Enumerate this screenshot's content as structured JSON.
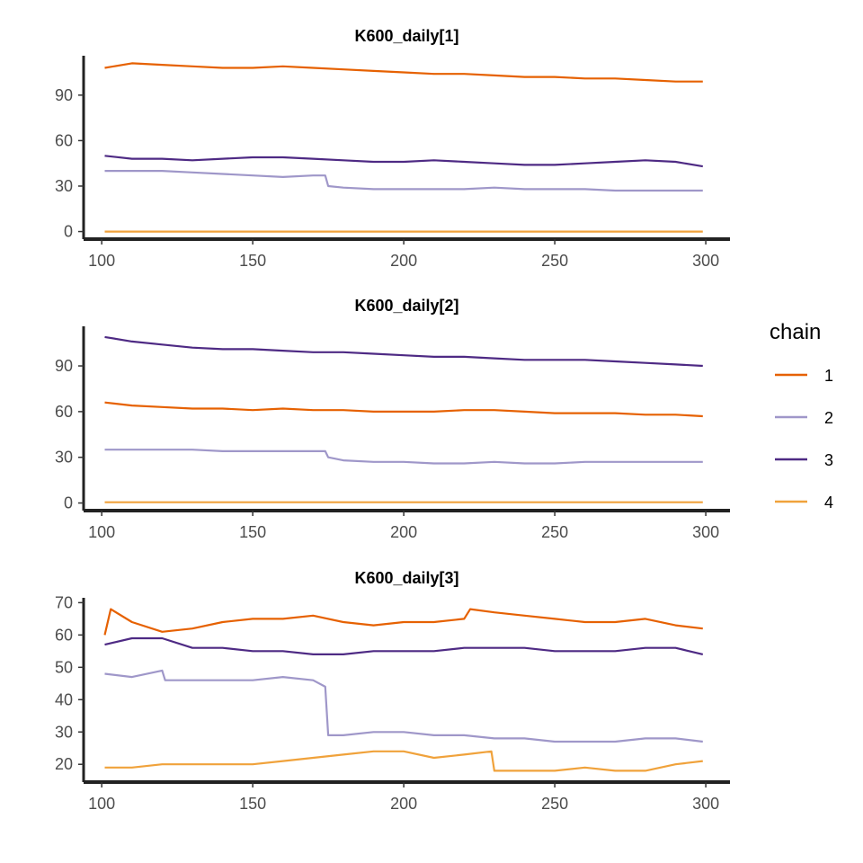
{
  "chart_data": [
    {
      "type": "line",
      "title": "K600_daily[1]",
      "xlabel": "",
      "ylabel": "",
      "xlim": [
        94,
        308
      ],
      "ylim": [
        -5,
        116
      ],
      "xticks": [
        100,
        150,
        200,
        250,
        300
      ],
      "yticks": [
        0,
        30,
        60,
        90
      ],
      "series": [
        {
          "name": "1",
          "x": [
            101,
            110,
            120,
            130,
            140,
            150,
            160,
            170,
            180,
            190,
            200,
            210,
            220,
            230,
            240,
            250,
            260,
            270,
            280,
            290,
            299
          ],
          "values": [
            108,
            111,
            110,
            109,
            108,
            108,
            109,
            108,
            107,
            106,
            105,
            104,
            104,
            103,
            102,
            102,
            101,
            101,
            100,
            99,
            99
          ]
        },
        {
          "name": "2",
          "x": [
            101,
            110,
            120,
            130,
            140,
            150,
            160,
            170,
            174,
            175,
            180,
            190,
            200,
            210,
            220,
            230,
            240,
            250,
            260,
            270,
            280,
            290,
            299
          ],
          "values": [
            40,
            40,
            40,
            39,
            38,
            37,
            36,
            37,
            37,
            30,
            29,
            28,
            28,
            28,
            28,
            29,
            28,
            28,
            28,
            27,
            27,
            27,
            27
          ]
        },
        {
          "name": "3",
          "x": [
            101,
            110,
            120,
            130,
            140,
            150,
            160,
            170,
            180,
            190,
            200,
            210,
            220,
            230,
            240,
            250,
            260,
            270,
            280,
            290,
            299
          ],
          "values": [
            50,
            48,
            48,
            47,
            48,
            49,
            49,
            48,
            47,
            46,
            46,
            47,
            46,
            45,
            44,
            44,
            45,
            46,
            47,
            46,
            43
          ]
        },
        {
          "name": "4",
          "x": [
            101,
            299
          ],
          "values": [
            0,
            0
          ]
        }
      ]
    },
    {
      "type": "line",
      "title": "K600_daily[2]",
      "xlabel": "",
      "ylabel": "",
      "xlim": [
        94,
        308
      ],
      "ylim": [
        -5,
        116
      ],
      "xticks": [
        100,
        150,
        200,
        250,
        300
      ],
      "yticks": [
        0,
        30,
        60,
        90
      ],
      "series": [
        {
          "name": "1",
          "x": [
            101,
            110,
            120,
            130,
            140,
            150,
            160,
            170,
            180,
            190,
            200,
            210,
            220,
            230,
            240,
            250,
            260,
            270,
            280,
            290,
            299
          ],
          "values": [
            66,
            64,
            63,
            62,
            62,
            61,
            62,
            61,
            61,
            60,
            60,
            60,
            61,
            61,
            60,
            59,
            59,
            59,
            58,
            58,
            57
          ]
        },
        {
          "name": "2",
          "x": [
            101,
            110,
            120,
            130,
            140,
            150,
            160,
            170,
            174,
            175,
            180,
            190,
            200,
            210,
            220,
            230,
            240,
            250,
            260,
            270,
            280,
            290,
            299
          ],
          "values": [
            35,
            35,
            35,
            35,
            34,
            34,
            34,
            34,
            34,
            30,
            28,
            27,
            27,
            26,
            26,
            27,
            26,
            26,
            27,
            27,
            27,
            27,
            27
          ]
        },
        {
          "name": "3",
          "x": [
            101,
            110,
            120,
            130,
            140,
            150,
            160,
            170,
            180,
            190,
            200,
            210,
            220,
            230,
            240,
            250,
            260,
            270,
            280,
            290,
            299
          ],
          "values": [
            109,
            106,
            104,
            102,
            101,
            101,
            100,
            99,
            99,
            98,
            97,
            96,
            96,
            95,
            94,
            94,
            94,
            93,
            92,
            91,
            90
          ]
        },
        {
          "name": "4",
          "x": [
            101,
            299
          ],
          "values": [
            0.5,
            0.5
          ]
        }
      ]
    },
    {
      "type": "line",
      "title": "K600_daily[3]",
      "xlabel": "",
      "ylabel": "",
      "xlim": [
        94,
        308
      ],
      "ylim": [
        14.5,
        71.5
      ],
      "xticks": [
        100,
        150,
        200,
        250,
        300
      ],
      "yticks": [
        20,
        30,
        40,
        50,
        60,
        70
      ],
      "series": [
        {
          "name": "1",
          "x": [
            101,
            103,
            110,
            120,
            130,
            140,
            150,
            160,
            170,
            180,
            190,
            200,
            210,
            220,
            222,
            230,
            240,
            250,
            260,
            270,
            280,
            290,
            299
          ],
          "values": [
            60,
            68,
            64,
            61,
            62,
            64,
            65,
            65,
            66,
            64,
            63,
            64,
            64,
            65,
            68,
            67,
            66,
            65,
            64,
            64,
            65,
            63,
            62
          ]
        },
        {
          "name": "2",
          "x": [
            101,
            110,
            120,
            121,
            130,
            140,
            150,
            160,
            170,
            174,
            175,
            180,
            190,
            200,
            210,
            220,
            230,
            240,
            250,
            260,
            270,
            280,
            290,
            299
          ],
          "values": [
            48,
            47,
            49,
            46,
            46,
            46,
            46,
            47,
            46,
            44,
            29,
            29,
            30,
            30,
            29,
            29,
            28,
            28,
            27,
            27,
            27,
            28,
            28,
            27
          ]
        },
        {
          "name": "3",
          "x": [
            101,
            110,
            120,
            130,
            140,
            150,
            160,
            170,
            180,
            190,
            200,
            210,
            220,
            230,
            240,
            250,
            260,
            270,
            280,
            290,
            299
          ],
          "values": [
            57,
            59,
            59,
            56,
            56,
            55,
            55,
            54,
            54,
            55,
            55,
            55,
            56,
            56,
            56,
            55,
            55,
            55,
            56,
            56,
            54
          ]
        },
        {
          "name": "4",
          "x": [
            101,
            110,
            120,
            130,
            140,
            150,
            160,
            170,
            180,
            190,
            200,
            210,
            220,
            229,
            230,
            240,
            250,
            260,
            270,
            280,
            290,
            299
          ],
          "values": [
            19,
            19,
            20,
            20,
            20,
            20,
            21,
            22,
            23,
            24,
            24,
            22,
            23,
            24,
            18,
            18,
            18,
            19,
            18,
            18,
            20,
            21
          ]
        }
      ]
    }
  ],
  "legend": {
    "title": "chain",
    "items": [
      {
        "label": "1",
        "color": "#E66101"
      },
      {
        "label": "2",
        "color": "#9F97C9"
      },
      {
        "label": "3",
        "color": "#4E2A84"
      },
      {
        "label": "4",
        "color": "#F0A23B"
      }
    ]
  }
}
